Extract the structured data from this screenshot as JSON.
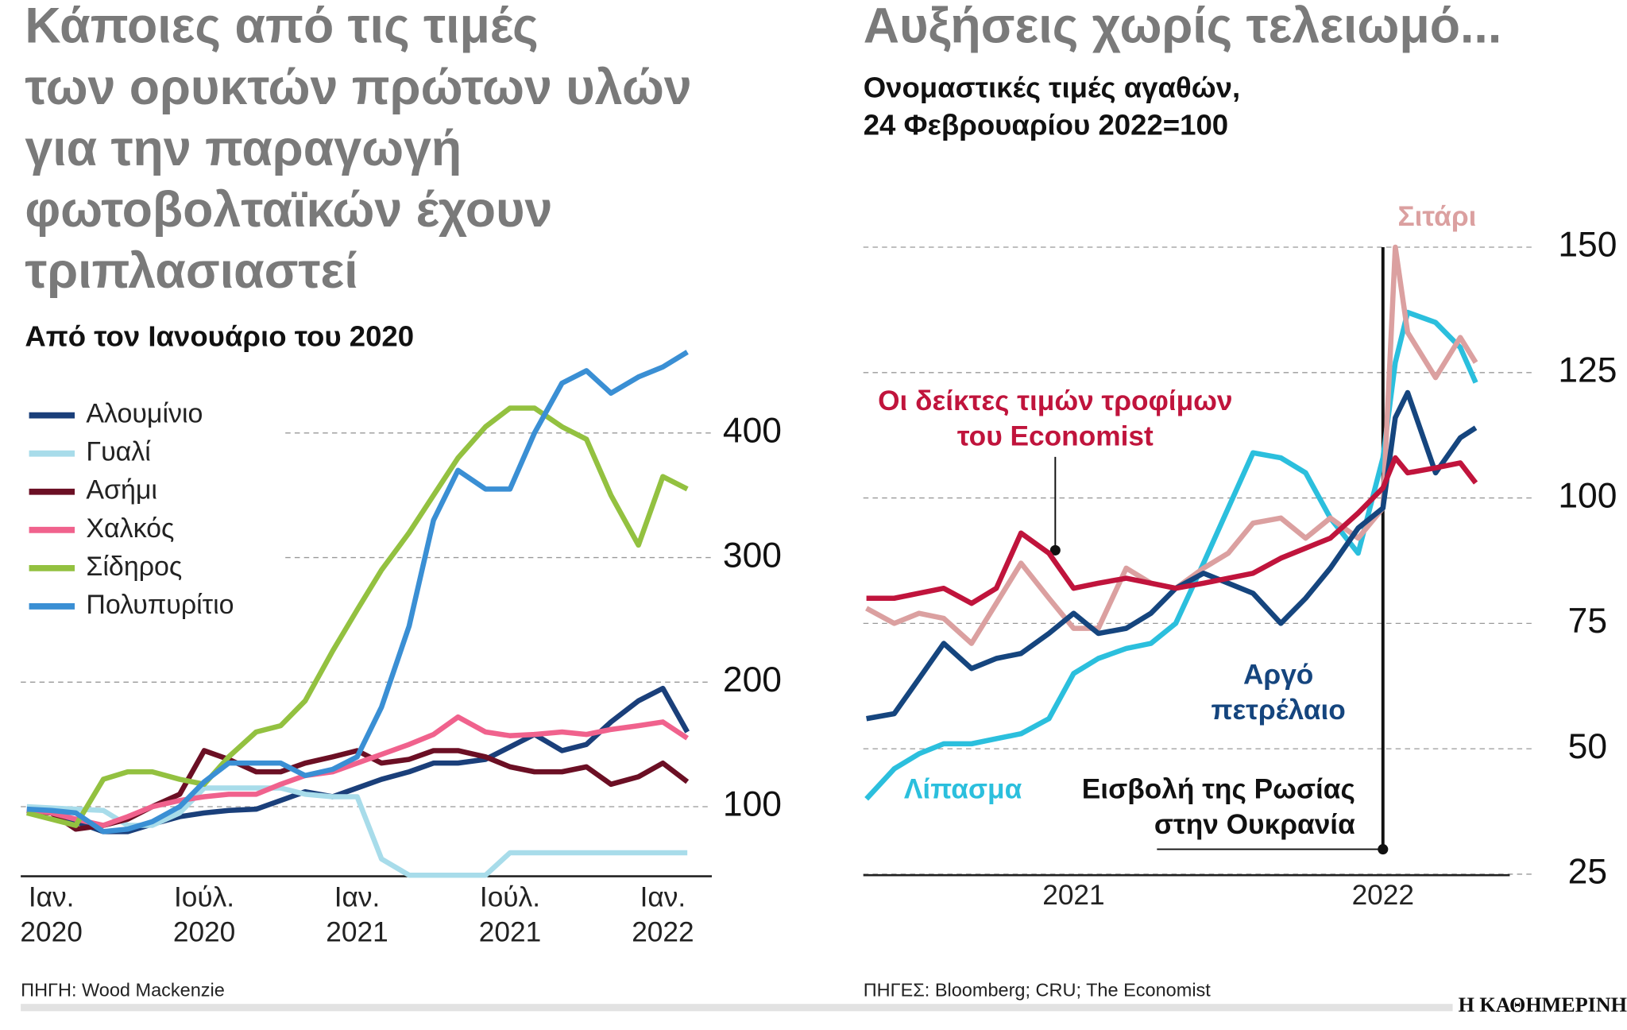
{
  "chart_data": [
    {
      "type": "line",
      "title": "Κάποιες από τις τιμές\nτων ορυκτών πρώτων υλών\nγια την παραγωγή\nφωτοβολταϊκών έχουν\nτριπλασιαστεί",
      "subtitle": "Από τον Ιανουάριο του 2020",
      "source": "ΠΗΓΗ: Wood Mackenzie",
      "x": [
        2019.92,
        2020,
        2020.08,
        2020.17,
        2020.25,
        2020.33,
        2020.42,
        2020.5,
        2020.58,
        2020.67,
        2020.75,
        2020.83,
        2020.92,
        2021,
        2021.08,
        2021.17,
        2021.25,
        2021.33,
        2021.42,
        2021.5,
        2021.58,
        2021.67,
        2021.75,
        2021.83,
        2021.92,
        2022,
        2022.08
      ],
      "xlim": [
        2019.9,
        2022.16
      ],
      "xticks": [
        {
          "value": 2020,
          "label": "Ιαν.\n2020"
        },
        {
          "value": 2020.5,
          "label": "Ιούλ.\n2020"
        },
        {
          "value": 2021,
          "label": "Ιαν.\n2021"
        },
        {
          "value": 2021.5,
          "label": "Ιούλ.\n2021"
        },
        {
          "value": 2022,
          "label": "Ιαν.\n2022"
        }
      ],
      "ylim": [
        45,
        470
      ],
      "yticks": [
        100,
        200,
        300,
        400
      ],
      "grid": true,
      "legend": "top-left",
      "series": [
        {
          "name": "Αλουμίνιο",
          "color": "#1a3f7a",
          "values": [
            96,
            95,
            88,
            80,
            80,
            86,
            92,
            95,
            97,
            98,
            105,
            112,
            108,
            115,
            122,
            128,
            135,
            135,
            138,
            148,
            158,
            145,
            150,
            168,
            185,
            195,
            160
          ]
        },
        {
          "name": "Γυαλί",
          "color": "#a8dcea",
          "values": [
            100,
            99,
            98,
            97,
            85,
            85,
            95,
            115,
            115,
            115,
            115,
            110,
            108,
            108,
            58,
            45,
            45,
            45,
            45,
            63,
            63,
            63,
            63,
            63,
            63,
            63,
            63
          ]
        },
        {
          "name": "Ασήμι",
          "color": "#6b0f24",
          "values": [
            97,
            95,
            82,
            85,
            90,
            100,
            110,
            145,
            138,
            128,
            128,
            135,
            140,
            145,
            135,
            138,
            145,
            145,
            140,
            132,
            128,
            128,
            132,
            118,
            124,
            135,
            120
          ]
        },
        {
          "name": "Χαλκός",
          "color": "#f0628d",
          "values": [
            98,
            95,
            90,
            85,
            92,
            100,
            105,
            108,
            110,
            110,
            118,
            125,
            128,
            135,
            142,
            150,
            158,
            172,
            160,
            157,
            158,
            160,
            158,
            162,
            165,
            168,
            155
          ]
        },
        {
          "name": "Σίδηρος",
          "color": "#93c140",
          "values": [
            95,
            90,
            85,
            122,
            128,
            128,
            122,
            118,
            140,
            160,
            165,
            185,
            225,
            258,
            290,
            320,
            350,
            380,
            405,
            420,
            420,
            405,
            395,
            350,
            310,
            365,
            355
          ]
        },
        {
          "name": "Πολυπυρίτιο",
          "color": "#3a8fd4",
          "values": [
            98,
            97,
            95,
            80,
            82,
            88,
            100,
            120,
            135,
            135,
            135,
            125,
            130,
            140,
            180,
            245,
            330,
            370,
            355,
            355,
            400,
            440,
            450,
            432,
            445,
            453,
            465
          ]
        }
      ]
    },
    {
      "type": "line",
      "title": "Αυξήσεις χωρίς τελειωμό...",
      "subtitle": "Ονομαστικές τιμές αγαθών,\n24 Φεβρουαρίου 2022=100",
      "source": "ΠΗΓΕΣ: Bloomberg; CRU; The Economist",
      "annotation": "Εισβολή της Ρωσίας\nστην Ουκρανία",
      "x": [
        2020.33,
        2020.42,
        2020.5,
        2020.58,
        2020.67,
        2020.75,
        2020.83,
        2020.92,
        2021,
        2021.08,
        2021.17,
        2021.25,
        2021.33,
        2021.42,
        2021.5,
        2021.58,
        2021.67,
        2021.75,
        2021.83,
        2021.92,
        2022,
        2022.04,
        2022.08,
        2022.17,
        2022.25,
        2022.3
      ],
      "xlim": [
        2020.32,
        2022.41
      ],
      "xticks": [
        2021,
        2022
      ],
      "ylim": [
        25,
        150
      ],
      "yticks": [
        25,
        50,
        75,
        100,
        125,
        150
      ],
      "grid": true,
      "series": [
        {
          "name": "Λίπασμα",
          "color": "#2bbfdd",
          "values": [
            40,
            46,
            49,
            51,
            51,
            52,
            53,
            56,
            65,
            68,
            70,
            71,
            75,
            87,
            98,
            109,
            108,
            105,
            96,
            89,
            108,
            127,
            137,
            135,
            130,
            123
          ]
        },
        {
          "name": "Σιτάρι",
          "color": "#dba0a0",
          "values": [
            78,
            75,
            77,
            76,
            71,
            79,
            87,
            80,
            74,
            74,
            86,
            83,
            82,
            86,
            89,
            95,
            96,
            92,
            96,
            92,
            98,
            150,
            133,
            124,
            132,
            127
          ]
        },
        {
          "name": "Αργό\nπετρέλαιο",
          "color": "#15457e",
          "values": [
            56,
            57,
            64,
            71,
            66,
            68,
            69,
            73,
            77,
            73,
            74,
            77,
            82,
            85,
            83,
            81,
            75,
            80,
            86,
            94,
            98,
            116,
            121,
            105,
            112,
            114
          ]
        },
        {
          "name": "Οι δείκτες τιμών τροφίμων\nτου Economist",
          "color": "#c0143c",
          "values": [
            80,
            80,
            81,
            82,
            79,
            82,
            93,
            89,
            82,
            83,
            84,
            83,
            82,
            83,
            84,
            85,
            88,
            90,
            92,
            97,
            102,
            108,
            105,
            106,
            107,
            103
          ]
        }
      ]
    }
  ],
  "brand": "Η ΚΑΘΗΜΕΡΙΝΗ"
}
